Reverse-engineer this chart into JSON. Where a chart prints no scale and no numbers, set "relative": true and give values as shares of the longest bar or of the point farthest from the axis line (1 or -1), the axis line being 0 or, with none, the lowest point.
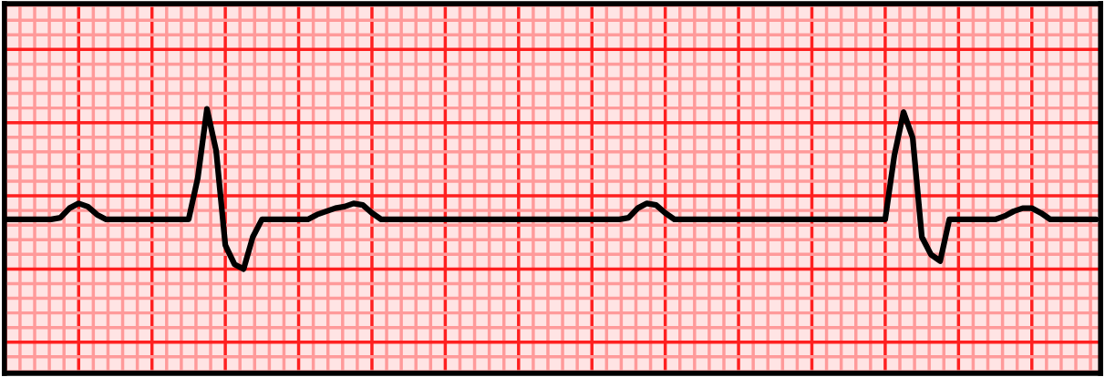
{
  "chart_data": {
    "type": "line",
    "relative": true,
    "grid": true,
    "legend": false,
    "marker": "none",
    "line_style": "solid",
    "categories": [
      null,
      null,
      null,
      null,
      null,
      null,
      null,
      null,
      null,
      null,
      null,
      null,
      null,
      null,
      null,
      null,
      null,
      null,
      null,
      null,
      null,
      null,
      null,
      null,
      null,
      null,
      null,
      null,
      null,
      null,
      null,
      null,
      null,
      null,
      null,
      null,
      null,
      null,
      null,
      null,
      null,
      null,
      null,
      null,
      null,
      null,
      null,
      null,
      null,
      null,
      null,
      null,
      null,
      null,
      null,
      null,
      null,
      null,
      null,
      null,
      null,
      null,
      null,
      null,
      null,
      null,
      null,
      null,
      null,
      null,
      null,
      null,
      null,
      null,
      null,
      null,
      null,
      null,
      null,
      null,
      null,
      null,
      null,
      null,
      null,
      null,
      null,
      null,
      null,
      null,
      null,
      null,
      null,
      null,
      null,
      null,
      null,
      null,
      null,
      null,
      null,
      null,
      null,
      null,
      null,
      null,
      null,
      null,
      null,
      null,
      null,
      null,
      null,
      null,
      null,
      null,
      null,
      null,
      null,
      null
    ],
    "series": [
      {
        "color": "#000000",
        "values": [
          0.31,
          0.31,
          0.31,
          0.31,
          0.31,
          0.31,
          0.32,
          0.38,
          0.41,
          0.39,
          0.34,
          0.31,
          0.31,
          0.31,
          0.31,
          0.31,
          0.31,
          0.31,
          0.31,
          0.31,
          0.31,
          0.57,
          1,
          0.74,
          0.15,
          0.03,
          0,
          0.2,
          0.31,
          0.31,
          0.31,
          0.31,
          0.31,
          0.31,
          0.34,
          0.36,
          0.38,
          0.39,
          0.41,
          0.4,
          0.35,
          0.31,
          0.31,
          0.31,
          0.31,
          0.31,
          0.31,
          0.31,
          0.31,
          0.31,
          0.31,
          0.31,
          0.31,
          0.31,
          0.31,
          0.31,
          0.31,
          0.31,
          0.31,
          0.31,
          0.31,
          0.31,
          0.31,
          0.31,
          0.31,
          0.31,
          0.31,
          0.31,
          0.32,
          0.38,
          0.41,
          0.4,
          0.35,
          0.31,
          0.31,
          0.31,
          0.31,
          0.31,
          0.31,
          0.31,
          0.31,
          0.31,
          0.31,
          0.31,
          0.31,
          0.31,
          0.31,
          0.31,
          0.31,
          0.31,
          0.31,
          0.31,
          0.31,
          0.31,
          0.31,
          0.31,
          0.31,
          0.71,
          0.98,
          0.82,
          0.2,
          0.09,
          0.05,
          0.31,
          0.31,
          0.31,
          0.31,
          0.31,
          0.31,
          0.33,
          0.36,
          0.38,
          0.38,
          0.35,
          0.31,
          0.31,
          0.31,
          0.31,
          0.31,
          0.31
        ]
      }
    ]
  }
}
